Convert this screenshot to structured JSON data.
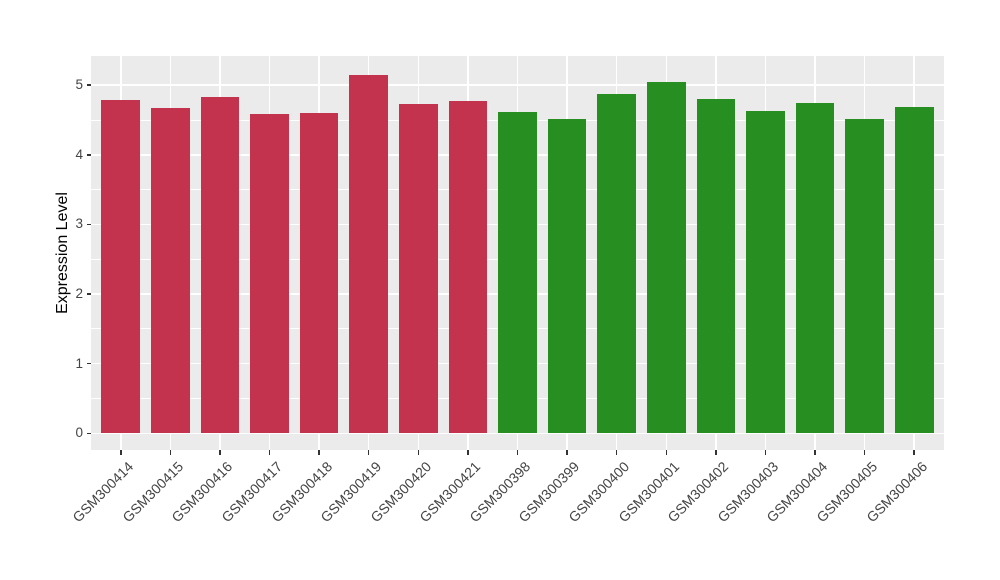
{
  "chart_data": {
    "type": "bar",
    "title": "",
    "xlabel": "",
    "ylabel": "Expression Level",
    "categories": [
      "GSM300414",
      "GSM300415",
      "GSM300416",
      "GSM300417",
      "GSM300418",
      "GSM300419",
      "GSM300420",
      "GSM300421",
      "GSM300398",
      "GSM300399",
      "GSM300400",
      "GSM300401",
      "GSM300402",
      "GSM300403",
      "GSM300404",
      "GSM300405",
      "GSM300406"
    ],
    "values": [
      4.79,
      4.67,
      4.83,
      4.58,
      4.6,
      5.14,
      4.73,
      4.77,
      4.62,
      4.52,
      4.88,
      5.04,
      4.8,
      4.63,
      4.74,
      4.52,
      4.69
    ],
    "bar_colors": [
      "#C3334D",
      "#C3334D",
      "#C3334D",
      "#C3334D",
      "#C3334D",
      "#C3334D",
      "#C3334D",
      "#C3334D",
      "#278E21",
      "#278E21",
      "#278E21",
      "#278E21",
      "#278E21",
      "#278E21",
      "#278E21",
      "#278E21",
      "#278E21"
    ],
    "groups": [
      {
        "color": "#C3334D",
        "samples": [
          "GSM300414",
          "GSM300415",
          "GSM300416",
          "GSM300417",
          "GSM300418",
          "GSM300419",
          "GSM300420",
          "GSM300421"
        ]
      },
      {
        "color": "#278E21",
        "samples": [
          "GSM300398",
          "GSM300399",
          "GSM300400",
          "GSM300401",
          "GSM300402",
          "GSM300403",
          "GSM300404",
          "GSM300405",
          "GSM300406"
        ]
      }
    ],
    "yticks": [
      0,
      1,
      2,
      3,
      4,
      5
    ],
    "ylim": [
      -0.24,
      5.42
    ],
    "legend_position": "none",
    "grid_major": true,
    "grid_minor": true,
    "panel_background": "#EBEBEB",
    "gridline_color": "#FFFFFF",
    "axis_text_color": "#444444",
    "tick_color": "#333333",
    "figure_background": "#FFFFFF"
  }
}
